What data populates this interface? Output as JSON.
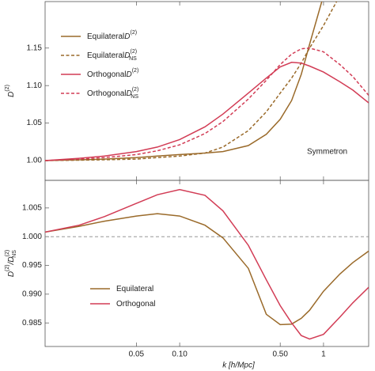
{
  "chart_data": [
    {
      "type": "line",
      "log_x": true,
      "ylabel": {
        "base": "D",
        "sup": "(2)"
      },
      "annotation": "Symmetron",
      "x": [
        0.0116,
        0.02,
        0.03,
        0.05,
        0.07,
        0.1,
        0.15,
        0.2,
        0.3,
        0.4,
        0.5,
        0.6,
        0.7,
        0.8,
        1.0,
        1.3,
        1.6,
        2.06
      ],
      "xlim": [
        0.0116,
        2.06
      ],
      "ylim": [
        0.9736,
        1.212
      ],
      "yticks": [
        {
          "value": 1,
          "label": "1.00"
        },
        1.05,
        {
          "value": 1.1,
          "label": "1.10"
        },
        1.15
      ],
      "series": [
        {
          "name": "Equilateral",
          "symbol": {
            "base": "D",
            "sup": "(2)"
          },
          "color": "#9a6a2a",
          "dash": false,
          "values": [
            1.0,
            1.001,
            1.002,
            1.004,
            1.006,
            1.008,
            1.01,
            1.012,
            1.02,
            1.035,
            1.055,
            1.08,
            1.115,
            1.155,
            1.22,
            null,
            null,
            null
          ]
        },
        {
          "name": "Equilateral",
          "symbol": {
            "base": "D",
            "sup": "(2)",
            "sub": "NS"
          },
          "color": "#9a6a2a",
          "dash": true,
          "values": [
            1.0,
            1.0005,
            1.001,
            1.002,
            1.004,
            1.006,
            1.01,
            1.018,
            1.04,
            1.065,
            1.09,
            1.11,
            1.13,
            1.15,
            1.18,
            1.22,
            null,
            null
          ]
        },
        {
          "name": "Orthogonal",
          "symbol": {
            "base": "D",
            "sup": "(2)"
          },
          "color": "#d23c55",
          "dash": false,
          "values": [
            1.0,
            1.003,
            1.006,
            1.012,
            1.018,
            1.028,
            1.045,
            1.062,
            1.09,
            1.11,
            1.125,
            1.131,
            1.13,
            1.126,
            1.118,
            1.105,
            1.094,
            1.077
          ]
        },
        {
          "name": "Orthogonal",
          "symbol": {
            "base": "D",
            "sup": "(2)",
            "sub": "NS"
          },
          "color": "#d23c55",
          "dash": true,
          "values": [
            1.0,
            1.002,
            1.004,
            1.008,
            1.013,
            1.021,
            1.036,
            1.052,
            1.082,
            1.107,
            1.128,
            1.142,
            1.149,
            1.15,
            1.145,
            1.128,
            1.112,
            1.087
          ]
        }
      ]
    },
    {
      "type": "line",
      "log_x": true,
      "xlabel": "k [h/Mpc]",
      "ylabel": {
        "base": "D",
        "sup": "(2)",
        "mid": "/D",
        "sub": "NS",
        "sup2": "(2)"
      },
      "x": [
        0.0116,
        0.02,
        0.03,
        0.05,
        0.07,
        0.1,
        0.15,
        0.2,
        0.3,
        0.4,
        0.5,
        0.6,
        0.7,
        0.8,
        1.0,
        1.3,
        1.6,
        2.06
      ],
      "xlim": [
        0.0116,
        2.06
      ],
      "xticks": [
        0.05,
        {
          "value": 0.1,
          "label": "0.10"
        },
        {
          "value": 0.5,
          "label": "0.50"
        },
        1
      ],
      "ylim": [
        0.9809,
        1.0098
      ],
      "yticks": [
        0.985,
        {
          "value": 0.99,
          "label": "0.990"
        },
        0.995,
        {
          "value": 1,
          "label": "1.000"
        },
        1.005
      ],
      "hline": 1,
      "series": [
        {
          "name": "Equilateral",
          "color": "#9a6a2a",
          "values": [
            1.0008,
            1.0018,
            1.0027,
            1.0036,
            1.004,
            1.0036,
            1.002,
            0.9998,
            0.9945,
            0.9865,
            0.9847,
            0.9848,
            0.9858,
            0.9872,
            0.9905,
            0.9935,
            0.9955,
            0.9975
          ]
        },
        {
          "name": "Orthogonal",
          "color": "#d23c55",
          "values": [
            1.0008,
            1.002,
            1.0035,
            1.0058,
            1.0073,
            1.0082,
            1.0072,
            1.0045,
            0.9985,
            0.9925,
            0.988,
            0.985,
            0.9828,
            0.9822,
            0.983,
            0.986,
            0.9885,
            0.9912
          ]
        }
      ]
    }
  ]
}
